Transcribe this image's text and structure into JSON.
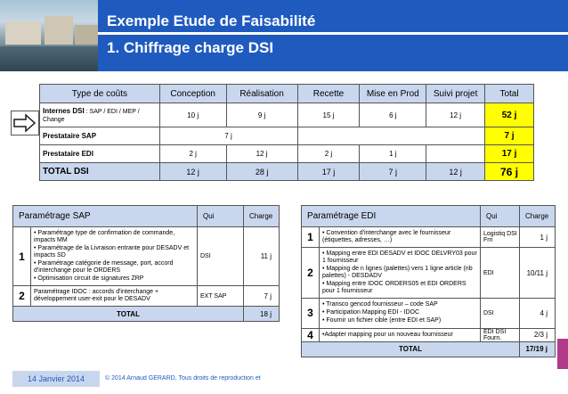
{
  "slide": {
    "title_line1": "Exemple Etude de Faisabilité",
    "title_line2": "1. Chiffrage charge DSI"
  },
  "cost_table": {
    "headers": [
      "Type de coûts",
      "Conception",
      "Réalisation",
      "Recette",
      "Mise en Prod",
      "Suivi projet",
      "Total"
    ],
    "rows": [
      {
        "label_main": "Internes DSI",
        "label_sub": " : SAP / EDI / MEP / Change",
        "cells": [
          "10 j",
          "9 j",
          "15 j",
          "6 j",
          "12 j"
        ],
        "total": "52 j"
      },
      {
        "label_main": "Prestataire SAP",
        "label_sub": "",
        "cells": [
          "",
          "7 j",
          "",
          "",
          ""
        ],
        "total": "7 j"
      },
      {
        "label_main": "Prestataire EDI",
        "label_sub": "",
        "cells": [
          "2 j",
          "12 j",
          "2 j",
          "1 j",
          ""
        ],
        "total": "17 j"
      },
      {
        "label_main": "TOTAL DSI",
        "label_sub": "",
        "cells": [
          "12 j",
          "28 j",
          "17 j",
          "7 j",
          "12 j"
        ],
        "total": "76 j"
      }
    ]
  },
  "sap_table": {
    "header_title": "Paramétrage SAP",
    "header_qui": "Qui",
    "header_charge": "Charge",
    "rows": [
      {
        "num": "1",
        "items": [
          "• Paramétrage type de confirmation de commande, impacts MM",
          "• Paramétrage de la Livraison entrante pour DESADV et impacts SD",
          "• Paramétrage catégorie de message, port, accord d'interchange pour le ORDERS",
          "• Optimisation circuit de signatures ZRP"
        ],
        "qui": "DSI",
        "charge": "11 j"
      },
      {
        "num": "2",
        "items": [
          "Paramétrage IDOC : accords d'interchange + développement user-exit pour le DESADV"
        ],
        "qui": "EXT SAP",
        "charge": "7 j"
      }
    ],
    "total_label": "TOTAL",
    "total_value": "18 j"
  },
  "edi_table": {
    "header_title": "Paramétrage EDI",
    "header_qui": "Qui",
    "header_charge": "Charge",
    "rows": [
      {
        "num": "1",
        "items": [
          "• Convention d'interchange avec le fournisseur (étiquettes, adresses, …)"
        ],
        "qui": "Logistiq DSI Frn",
        "charge": "1 j"
      },
      {
        "num": "2",
        "items": [
          "• Mapping entre EDI DESADV et IDOC DELVRY03 pour 1 fournisseur",
          "• Mapping de n lignes (palettes) vers 1 ligne article (nb palettes) - DESDADV",
          "• Mapping entre IDOC ORDERS05 et EDI ORDERS pour 1 fournisseur"
        ],
        "qui": "EDI",
        "charge": "10/11 j"
      },
      {
        "num": "3",
        "items": [
          "• Transco gencod fournisseur – code SAP",
          "• Participation Mapping EDI - IDOC",
          "• Fournir un fichier cible (entre EDI et SAP)"
        ],
        "qui": "DSI",
        "charge": "4 j"
      },
      {
        "num": "4",
        "items": [
          "•Adapter mapping pour un nouveau fournisseur"
        ],
        "qui": "EDI DSI Fourn.",
        "charge": "2/3 j"
      }
    ],
    "total_label": "TOTAL",
    "total_value": "17/19 j"
  },
  "footer": {
    "date": "14 Janvier 2014",
    "copyright": "© 2014 Arnaud GERARD, Tous droits de reproduction et"
  },
  "colors": {
    "brand_blue": "#1f5bbf",
    "header_fill": "#c9d7ee",
    "total_highlight": "#ffff00"
  },
  "icons": {
    "arrow": "right-arrow-icon"
  }
}
